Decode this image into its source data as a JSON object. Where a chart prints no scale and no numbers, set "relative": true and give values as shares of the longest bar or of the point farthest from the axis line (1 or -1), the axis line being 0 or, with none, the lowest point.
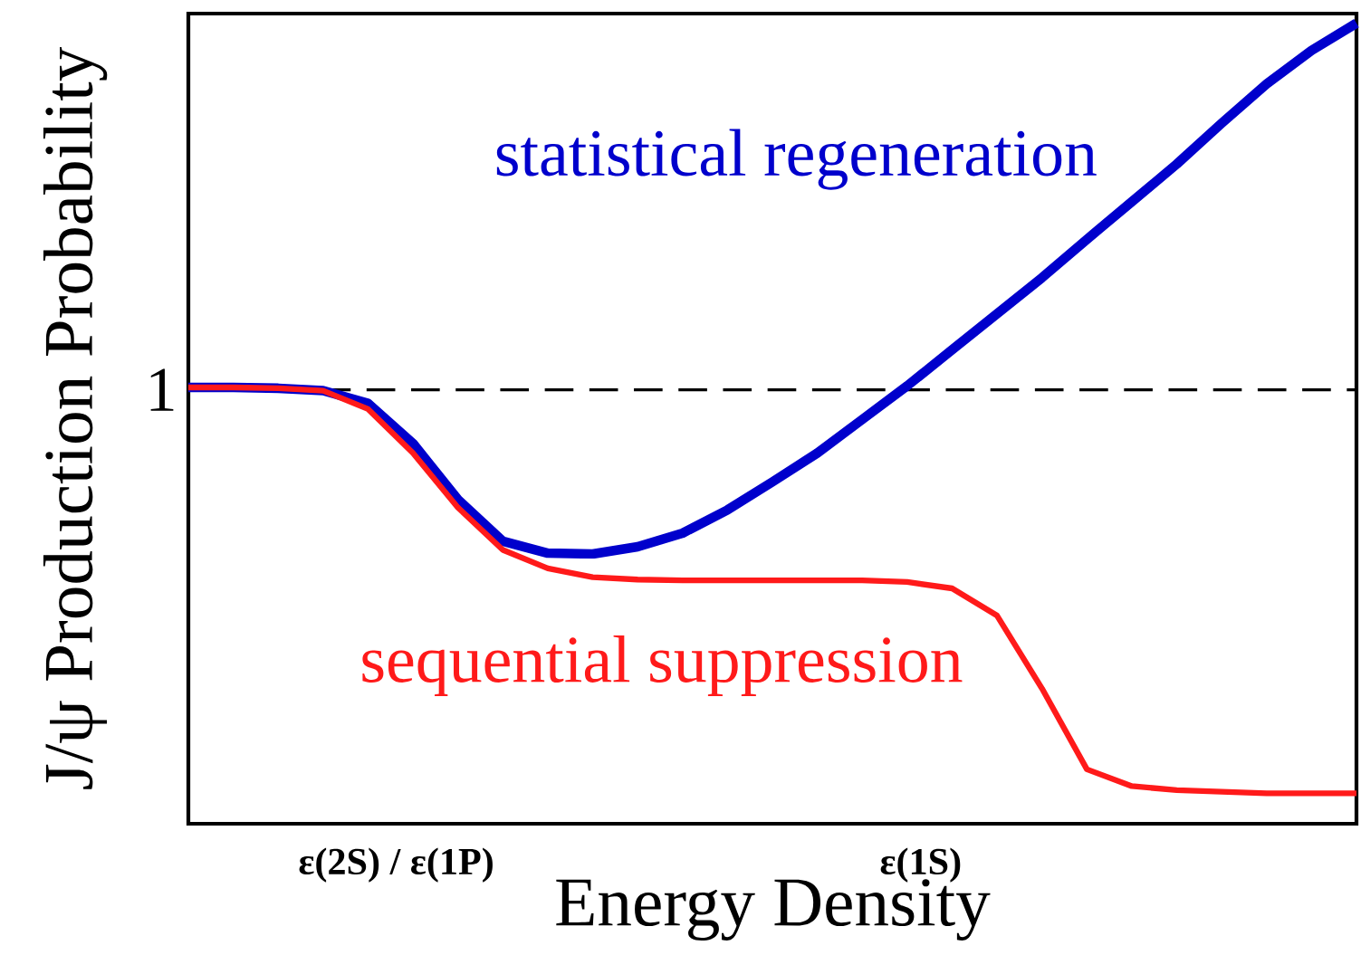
{
  "chart_data": {
    "type": "line",
    "relative": true,
    "xlabel": "Energy Density",
    "ylabel": "J/ψ Production Probability",
    "annotations": [
      "ε(2S) / ε(1P)",
      "ε(1S)"
    ],
    "categories": [
      null,
      null,
      null,
      null,
      null,
      null,
      null,
      null,
      null,
      null,
      null,
      null,
      null,
      null,
      null,
      null,
      null,
      null,
      null,
      null,
      null,
      null,
      null,
      null,
      null,
      null,
      null
    ],
    "ref_lines": [
      {
        "axis": "y",
        "value": 0.542,
        "label": "1",
        "color": "#000000",
        "line_style": "dashed"
      }
    ],
    "series": [
      {
        "name": "statistical regeneration",
        "color": "#0000cc",
        "values": [
          0.545,
          0.545,
          0.544,
          0.541,
          0.525,
          0.475,
          0.405,
          0.353,
          0.338,
          0.337,
          0.346,
          0.363,
          0.392,
          0.427,
          0.463,
          0.505,
          0.547,
          0.592,
          0.637,
          0.682,
          0.73,
          0.777,
          0.824,
          0.875,
          0.924,
          0.966,
          1
        ]
      },
      {
        "name": "sequential suppression",
        "color": "#ff1a1a",
        "values": [
          0.545,
          0.545,
          0.544,
          0.541,
          0.518,
          0.463,
          0.395,
          0.342,
          0.319,
          0.308,
          0.305,
          0.304,
          0.304,
          0.304,
          0.304,
          0.304,
          0.302,
          0.294,
          0.26,
          0.169,
          0.068,
          0.047,
          0.042,
          0.04,
          0.038,
          0.038,
          0.038
        ]
      }
    ]
  }
}
